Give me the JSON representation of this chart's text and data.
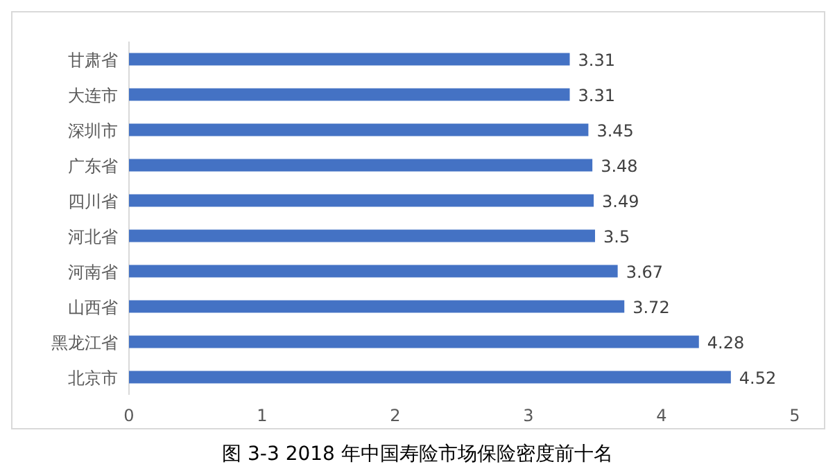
{
  "chart_data": {
    "type": "bar",
    "orientation": "horizontal",
    "title": "图 3-3 2018 年中国寿险市场保险密度前十名",
    "categories": [
      "甘肃省",
      "大连市",
      "深圳市",
      "广东省",
      "四川省",
      "河北省",
      "河南省",
      "山西省",
      "黑龙江省",
      "北京市"
    ],
    "values": [
      3.31,
      3.31,
      3.45,
      3.48,
      3.49,
      3.5,
      3.67,
      3.72,
      4.28,
      4.52
    ],
    "color": "#4472c4",
    "xlim": [
      0,
      5
    ],
    "xticks": [
      0,
      1,
      2,
      3,
      4,
      5
    ],
    "data_labels": true
  }
}
